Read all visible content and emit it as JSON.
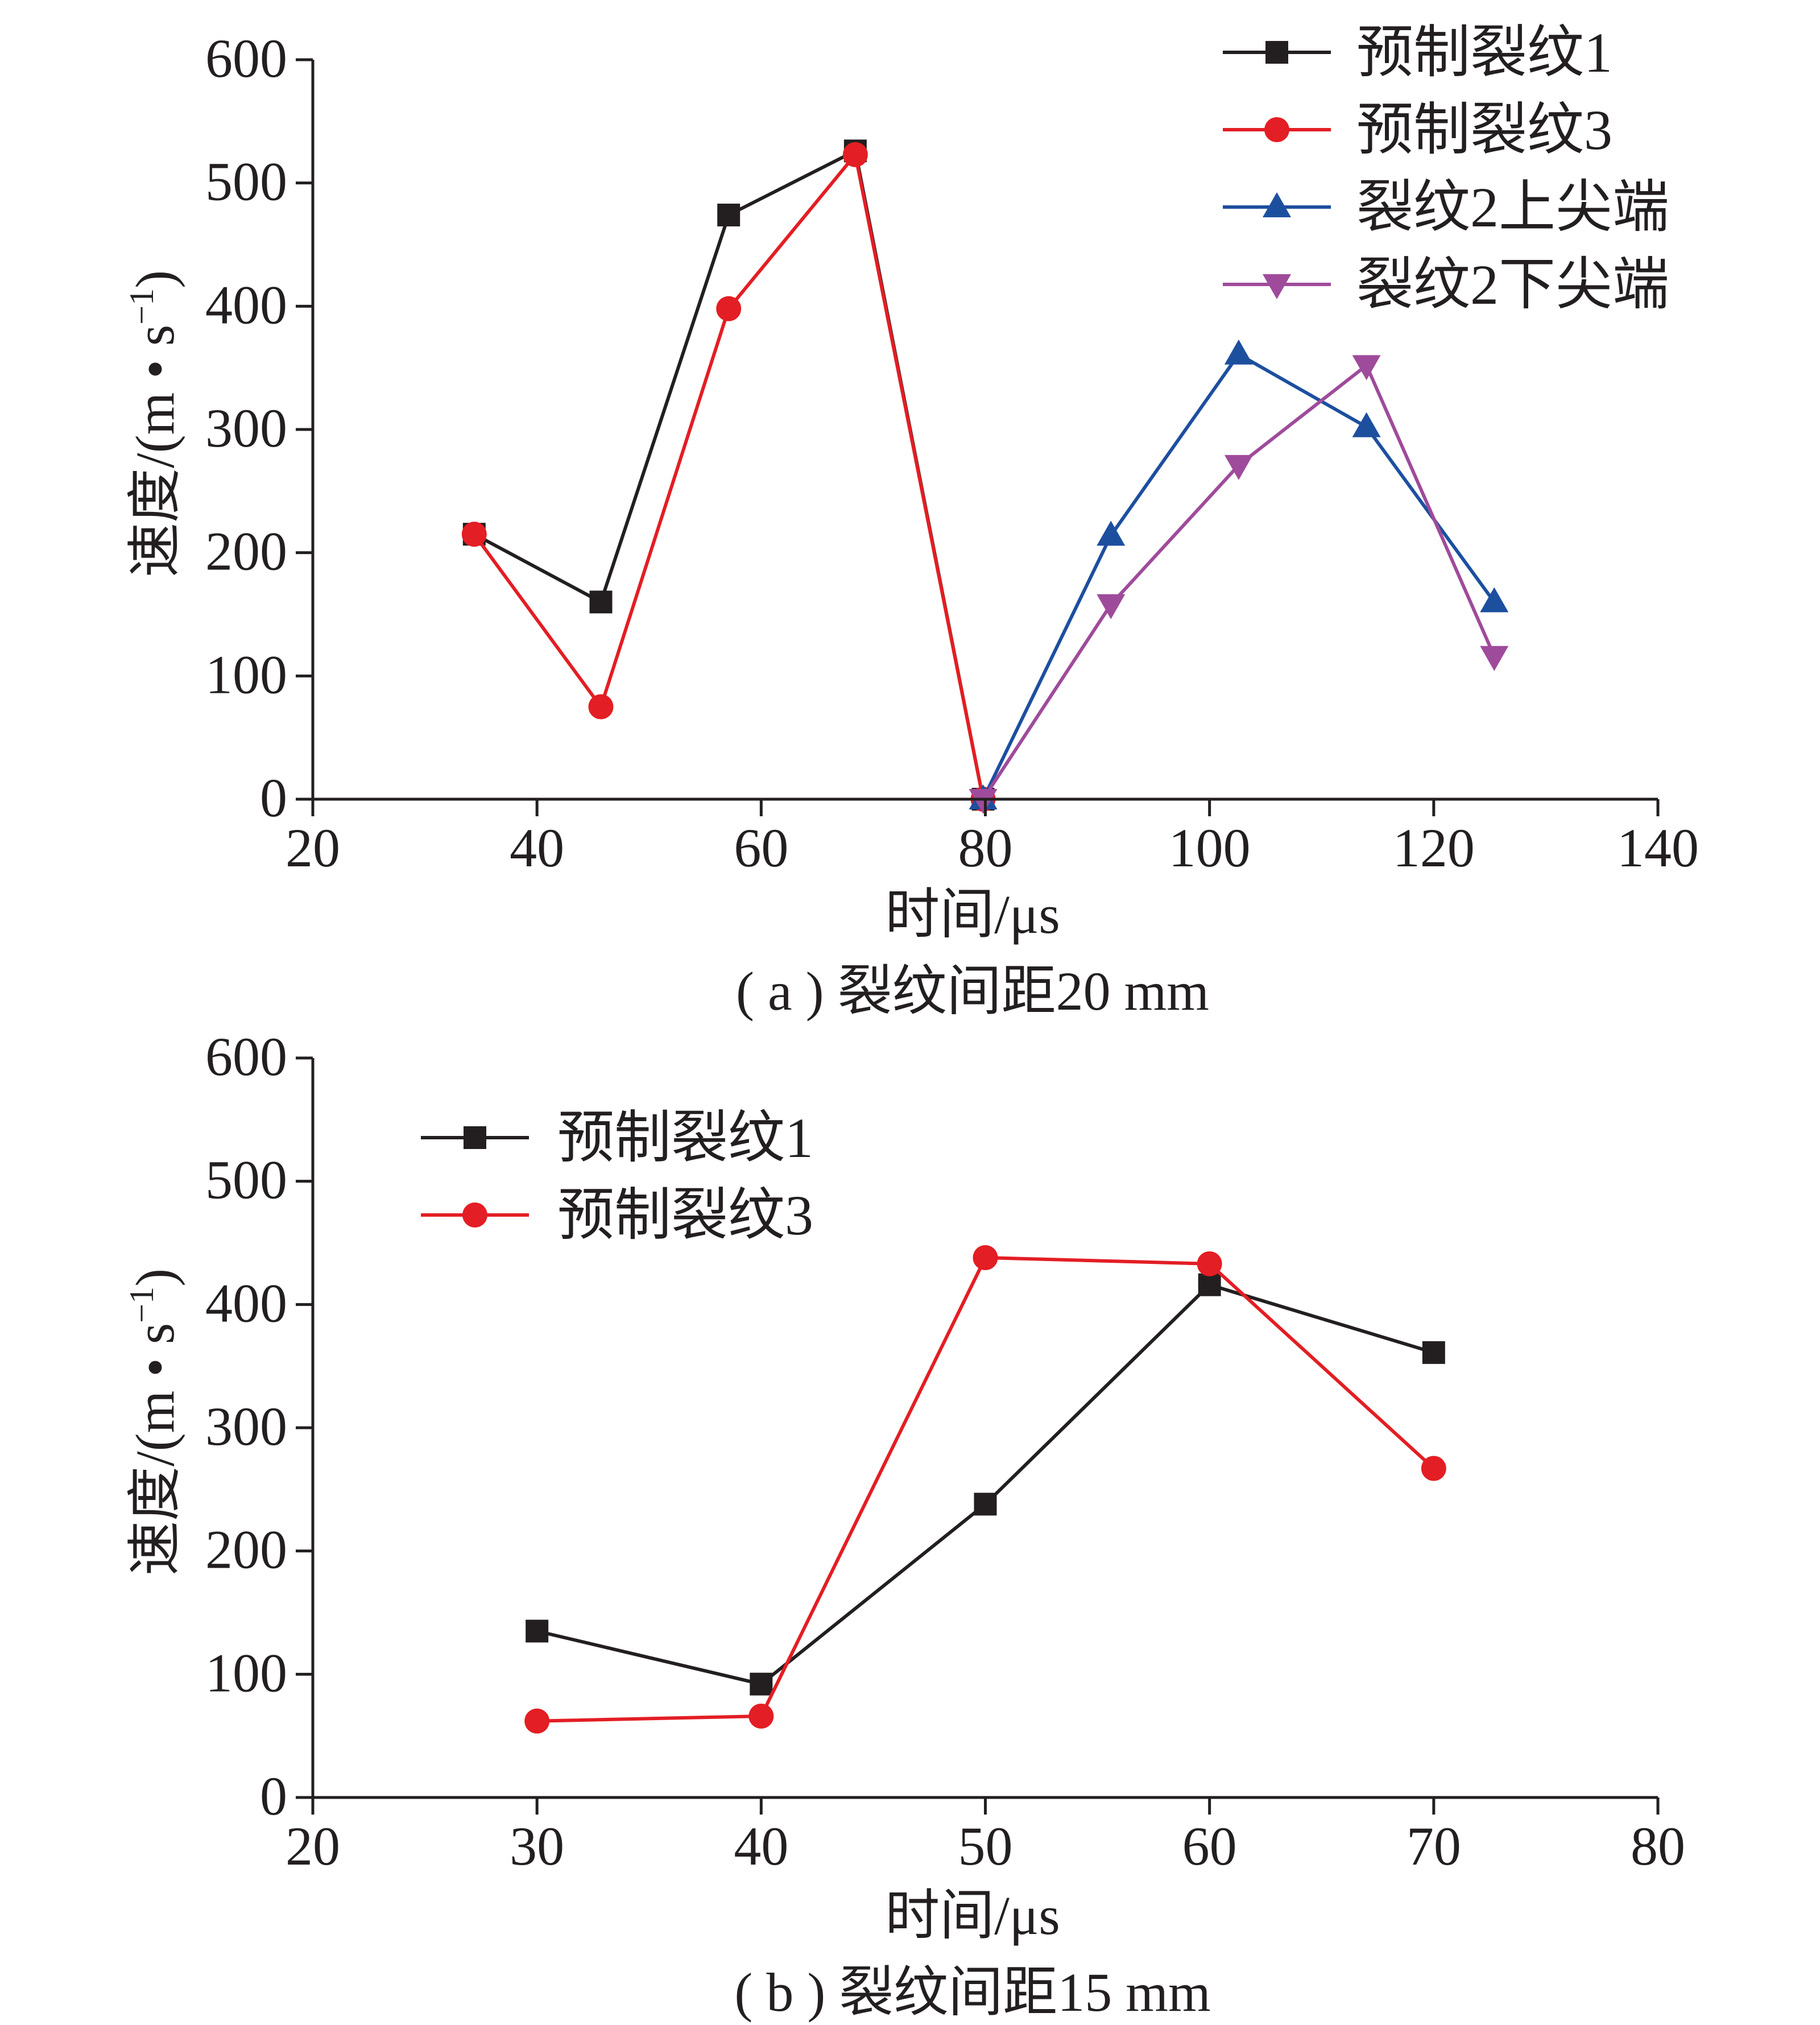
{
  "chart_data": [
    {
      "id": "a",
      "type": "line",
      "caption": "( a ) 裂纹间距20 mm",
      "xlabel": "时间/μs",
      "ylabel": "速度/(m • s",
      "ylabel_sup": "−1",
      "ylabel_close": ")",
      "xlim": [
        20,
        140
      ],
      "ylim": [
        0,
        600
      ],
      "xticks": [
        20,
        40,
        60,
        80,
        100,
        120,
        140
      ],
      "yticks": [
        0,
        100,
        200,
        300,
        400,
        500,
        600
      ],
      "grid": false,
      "legend_position": "top-right",
      "series": [
        {
          "name": "预制裂纹1",
          "color": "#231f20",
          "marker": "square",
          "x": [
            34.4,
            45.7,
            57.1,
            68.4,
            79.8
          ],
          "y": [
            215,
            160,
            474,
            526,
            0
          ]
        },
        {
          "name": "预制裂纹3",
          "color": "#e31e24",
          "marker": "circle",
          "x": [
            34.4,
            45.7,
            57.1,
            68.4,
            79.8
          ],
          "y": [
            215,
            75,
            398,
            523,
            0
          ]
        },
        {
          "name": "裂纹2上尖端",
          "color": "#1d4f9f",
          "marker": "triangle-up",
          "x": [
            79.8,
            91.2,
            102.6,
            114.0,
            125.4
          ],
          "y": [
            0,
            214,
            361,
            302,
            160
          ]
        },
        {
          "name": "裂纹2下尖端",
          "color": "#9f4b9b",
          "marker": "triangle-down",
          "x": [
            79.8,
            91.2,
            102.6,
            114.0,
            125.4
          ],
          "y": [
            0,
            158,
            271,
            352,
            116
          ]
        }
      ]
    },
    {
      "id": "b",
      "type": "line",
      "caption": "( b ) 裂纹间距15 mm",
      "xlabel": "时间/μs",
      "ylabel": "速度/(m • s",
      "ylabel_sup": "−1",
      "ylabel_close": ")",
      "xlim": [
        20,
        80
      ],
      "ylim": [
        0,
        600
      ],
      "xticks": [
        20,
        30,
        40,
        50,
        60,
        70,
        80
      ],
      "yticks": [
        0,
        100,
        200,
        300,
        400,
        500,
        600
      ],
      "grid": false,
      "legend_position": "top-left",
      "series": [
        {
          "name": "预制裂纹1",
          "color": "#231f20",
          "marker": "square",
          "x": [
            30,
            40,
            50,
            60,
            70
          ],
          "y": [
            135,
            92,
            238,
            416,
            361
          ]
        },
        {
          "name": "预制裂纹3",
          "color": "#e31e24",
          "marker": "circle",
          "x": [
            30,
            40,
            50,
            60,
            70
          ],
          "y": [
            62,
            66,
            438,
            433,
            267
          ]
        }
      ]
    }
  ]
}
